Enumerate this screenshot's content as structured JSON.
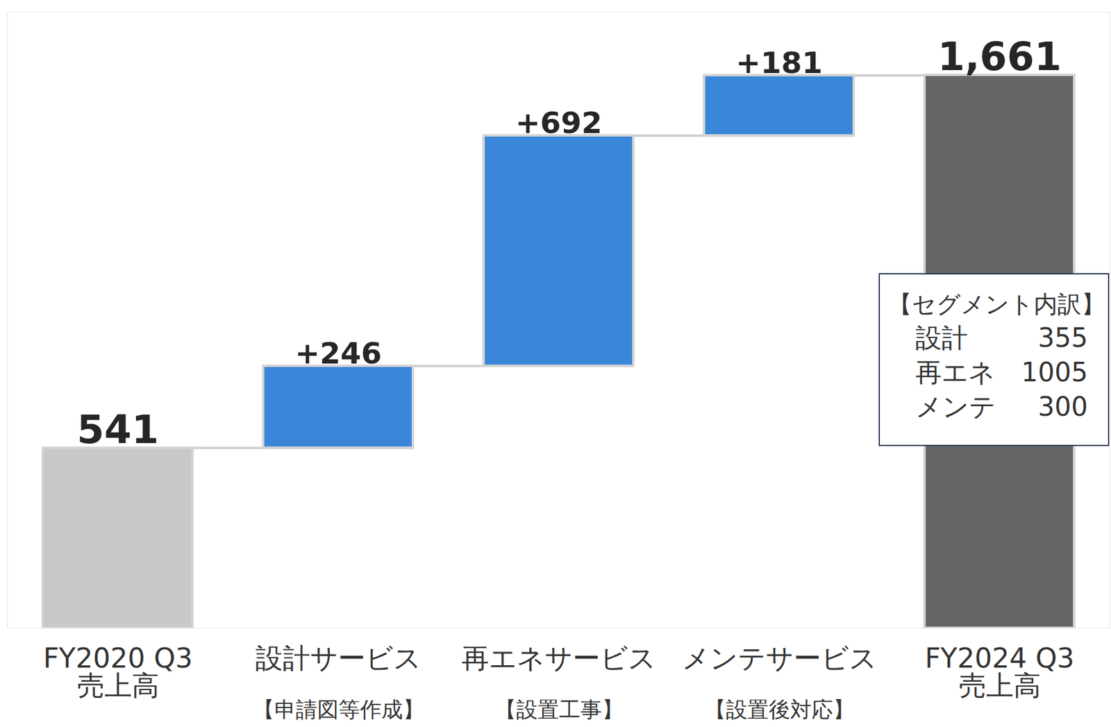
{
  "chart_data": {
    "type": "waterfall",
    "categories": [
      "FY2020 Q3\n売上高",
      "設計サービス",
      "再エネサービス",
      "メンテサービス",
      "FY2024 Q3\n売上高"
    ],
    "category_notes": [
      null,
      "【申請図等作成】",
      "【設置工事】",
      "【設置後対応】",
      null
    ],
    "values": [
      541,
      246,
      692,
      181,
      1661
    ],
    "value_labels": [
      "541",
      "+246",
      "+692",
      "+181",
      "1,661"
    ],
    "colors": [
      "#c8c8c8",
      "#3a86d8",
      "#3a86d8",
      "#3a86d8",
      "#666666"
    ],
    "data_labels": true,
    "tick_labels": "x",
    "ylim": [
      0,
      1850
    ],
    "yticks": [],
    "annotation": {
      "title": "【セグメント内訳】",
      "rows": [
        {
          "label": "設計",
          "value": 355
        },
        {
          "label": "再エネ",
          "value": 1005
        },
        {
          "label": "メンテ",
          "value": 300
        }
      ]
    }
  }
}
